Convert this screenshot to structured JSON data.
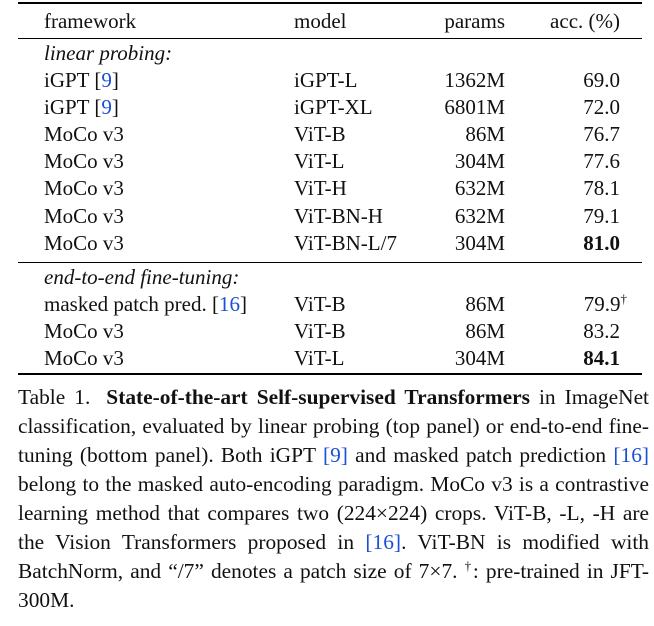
{
  "table": {
    "headers": {
      "framework": "framework",
      "model": "model",
      "params": "params",
      "acc": "acc. (%)"
    },
    "sections": [
      {
        "label": "linear probing:",
        "rows": [
          {
            "framework": "iGPT",
            "ref": "9",
            "model": "iGPT-L",
            "params": "1362M",
            "acc": "69.0",
            "bold": false,
            "dagger": ""
          },
          {
            "framework": "iGPT",
            "ref": "9",
            "model": "iGPT-XL",
            "params": "6801M",
            "acc": "72.0",
            "bold": false,
            "dagger": ""
          },
          {
            "framework": "MoCo v3",
            "ref": "",
            "model": "ViT-B",
            "params": "86M",
            "acc": "76.7",
            "bold": false,
            "dagger": ""
          },
          {
            "framework": "MoCo v3",
            "ref": "",
            "model": "ViT-L",
            "params": "304M",
            "acc": "77.6",
            "bold": false,
            "dagger": ""
          },
          {
            "framework": "MoCo v3",
            "ref": "",
            "model": "ViT-H",
            "params": "632M",
            "acc": "78.1",
            "bold": false,
            "dagger": ""
          },
          {
            "framework": "MoCo v3",
            "ref": "",
            "model": "ViT-BN-H",
            "params": "632M",
            "acc": "79.1",
            "bold": false,
            "dagger": ""
          },
          {
            "framework": "MoCo v3",
            "ref": "",
            "model": "ViT-BN-L/7",
            "params": "304M",
            "acc": "81.0",
            "bold": true,
            "dagger": ""
          }
        ]
      },
      {
        "label": "end-to-end fine-tuning:",
        "rows": [
          {
            "framework": "masked patch pred.",
            "ref": "16",
            "model": "ViT-B",
            "params": "86M",
            "acc": "79.9",
            "bold": false,
            "dagger": "†"
          },
          {
            "framework": "MoCo v3",
            "ref": "",
            "model": "ViT-B",
            "params": "86M",
            "acc": "83.2",
            "bold": false,
            "dagger": ""
          },
          {
            "framework": "MoCo v3",
            "ref": "",
            "model": "ViT-L",
            "params": "304M",
            "acc": "84.1",
            "bold": true,
            "dagger": ""
          }
        ]
      }
    ]
  },
  "caption": {
    "label": "Table 1.",
    "title": "State-of-the-art Self-supervised Transformers",
    "t1": " in ImageNet classification, evaluated by linear probing (top panel) or end-to-end fine-tuning (bottom panel). Both iGPT ",
    "ref1": "[9]",
    "t2": " and masked patch prediction ",
    "ref2": "[16]",
    "t3": " belong to the masked auto-encoding paradigm. MoCo v3 is a contrastive learning method that compares two (224×224) crops. ViT-B, -L, -H are the Vision Transformers proposed in ",
    "ref3": "[16]",
    "t4": ". ViT-BN is modified with BatchNorm, and “/7” denotes a patch size of 7×7. ",
    "dagger": "†",
    "t5": ": pre-trained in JFT-300M."
  }
}
